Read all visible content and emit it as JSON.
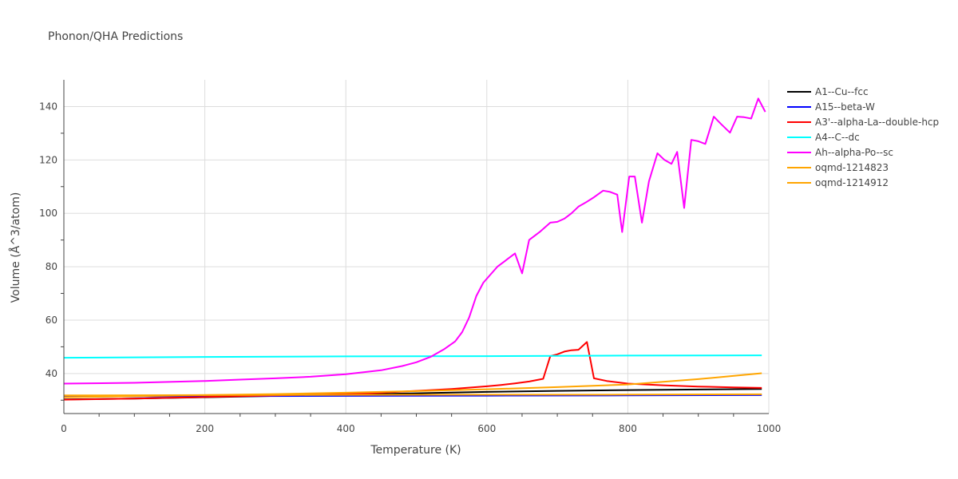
{
  "chart_data": {
    "type": "line",
    "title": "Phonon/QHA Predictions",
    "xlabel": "Temperature (K)",
    "ylabel": "Volume (Å^3/atom)",
    "xlim": [
      0,
      1000
    ],
    "ylim": [
      25,
      150
    ],
    "xticks": [
      0,
      200,
      400,
      600,
      800,
      1000
    ],
    "yticks": [
      40,
      60,
      80,
      100,
      120,
      140
    ],
    "grid": true,
    "legend_position": "top-right",
    "series": [
      {
        "name": "A1--Cu--fcc",
        "color": "#000000",
        "x": [
          0,
          100,
          200,
          300,
          400,
          500,
          600,
          700,
          800,
          900,
          990
        ],
        "y": [
          30.3,
          30.6,
          31.1,
          31.6,
          32.1,
          32.6,
          33.1,
          33.5,
          33.8,
          34.0,
          34.2
        ]
      },
      {
        "name": "A15--beta-W",
        "color": "#0000ff",
        "x": [
          0,
          200,
          400,
          600,
          800,
          990
        ],
        "y": [
          31.4,
          31.5,
          31.6,
          31.7,
          31.8,
          31.9
        ]
      },
      {
        "name": "A3'--alpha-La--double-hcp",
        "color": "#ff0000",
        "x": [
          0,
          100,
          200,
          300,
          400,
          450,
          500,
          550,
          600,
          620,
          640,
          660,
          680,
          690,
          700,
          710,
          720,
          730,
          742,
          752,
          770,
          800,
          850,
          900,
          950,
          990
        ],
        "y": [
          30.2,
          30.6,
          31.2,
          31.8,
          32.3,
          32.8,
          33.5,
          34.2,
          35.2,
          35.7,
          36.3,
          37.0,
          38.0,
          46.5,
          47.2,
          48.2,
          48.7,
          48.9,
          51.8,
          38.2,
          37.2,
          36.2,
          35.6,
          35.1,
          34.8,
          34.6
        ]
      },
      {
        "name": "A4--C--dc",
        "color": "#00ffff",
        "x": [
          0,
          200,
          400,
          600,
          800,
          990
        ],
        "y": [
          45.9,
          46.2,
          46.4,
          46.5,
          46.7,
          46.8
        ]
      },
      {
        "name": "Ah--alpha-Po--sc",
        "color": "#ff00ff",
        "x": [
          0,
          100,
          200,
          250,
          300,
          350,
          400,
          450,
          480,
          500,
          520,
          540,
          555,
          565,
          575,
          585,
          595,
          605,
          615,
          625,
          640,
          650,
          660,
          675,
          690,
          700,
          710,
          720,
          730,
          740,
          752,
          765,
          775,
          785,
          792,
          802,
          810,
          820,
          830,
          842,
          852,
          862,
          870,
          880,
          890,
          900,
          910,
          922,
          932,
          945,
          955,
          965,
          975,
          985,
          995
        ],
        "y": [
          36.2,
          36.5,
          37.2,
          37.7,
          38.2,
          38.8,
          39.7,
          41.2,
          42.8,
          44.2,
          46.2,
          49.2,
          52.0,
          55.5,
          61.0,
          69.0,
          74.0,
          77.0,
          80.0,
          82.0,
          85.0,
          77.5,
          90.0,
          93.0,
          96.5,
          96.8,
          98.0,
          100.0,
          102.5,
          104.0,
          106.0,
          108.5,
          108.0,
          107.0,
          93.0,
          113.8,
          113.8,
          96.5,
          112.0,
          122.5,
          120.0,
          118.5,
          123.0,
          102.0,
          127.5,
          127.0,
          126.0,
          136.2,
          133.5,
          130.2,
          136.2,
          136.0,
          135.5,
          143.0,
          138.0
        ]
      },
      {
        "name": "oqmd-1214823",
        "color": "#ffa500",
        "x": [
          0,
          200,
          400,
          600,
          800,
          990
        ],
        "y": [
          31.8,
          31.9,
          32.0,
          32.05,
          32.1,
          32.2
        ]
      },
      {
        "name": "oqmd-1214912",
        "color": "#ffa500",
        "x": [
          0,
          100,
          200,
          300,
          400,
          500,
          600,
          700,
          800,
          900,
          990
        ],
        "y": [
          31.1,
          31.5,
          31.9,
          32.3,
          32.8,
          33.4,
          34.1,
          34.9,
          35.9,
          37.9,
          40.1
        ]
      }
    ]
  }
}
